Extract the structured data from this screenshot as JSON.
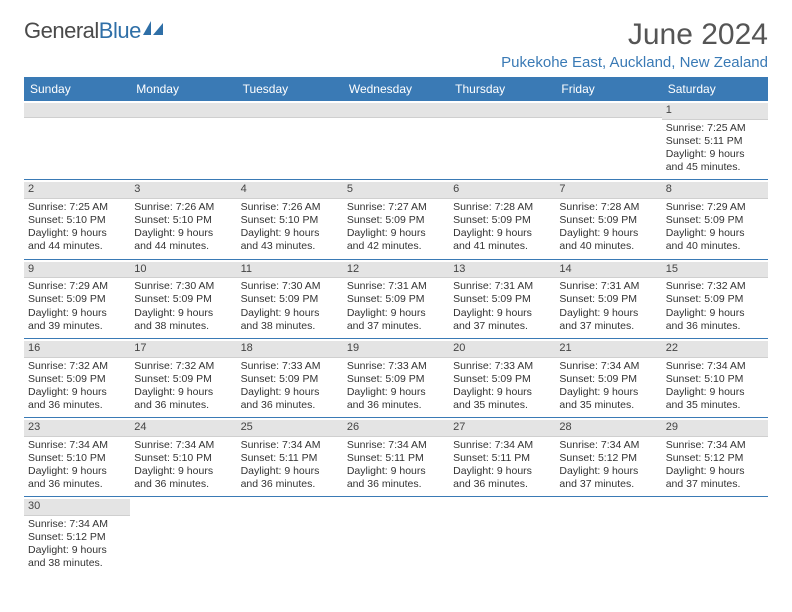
{
  "logo": {
    "text1": "General",
    "text2": "Blue"
  },
  "header": {
    "month_title": "June 2024",
    "location": "Pukekohe East, Auckland, New Zealand"
  },
  "colors": {
    "header_bg": "#3a7ab5",
    "header_text": "#ffffff",
    "daynum_bg": "#e4e4e4",
    "row_border": "#3a7ab5",
    "location_color": "#3a7ab5"
  },
  "day_names": [
    "Sunday",
    "Monday",
    "Tuesday",
    "Wednesday",
    "Thursday",
    "Friday",
    "Saturday"
  ],
  "weeks": [
    [
      null,
      null,
      null,
      null,
      null,
      null,
      {
        "num": "1",
        "sunrise": "Sunrise: 7:25 AM",
        "sunset": "Sunset: 5:11 PM",
        "day1": "Daylight: 9 hours",
        "day2": "and 45 minutes."
      }
    ],
    [
      {
        "num": "2",
        "sunrise": "Sunrise: 7:25 AM",
        "sunset": "Sunset: 5:10 PM",
        "day1": "Daylight: 9 hours",
        "day2": "and 44 minutes."
      },
      {
        "num": "3",
        "sunrise": "Sunrise: 7:26 AM",
        "sunset": "Sunset: 5:10 PM",
        "day1": "Daylight: 9 hours",
        "day2": "and 44 minutes."
      },
      {
        "num": "4",
        "sunrise": "Sunrise: 7:26 AM",
        "sunset": "Sunset: 5:10 PM",
        "day1": "Daylight: 9 hours",
        "day2": "and 43 minutes."
      },
      {
        "num": "5",
        "sunrise": "Sunrise: 7:27 AM",
        "sunset": "Sunset: 5:09 PM",
        "day1": "Daylight: 9 hours",
        "day2": "and 42 minutes."
      },
      {
        "num": "6",
        "sunrise": "Sunrise: 7:28 AM",
        "sunset": "Sunset: 5:09 PM",
        "day1": "Daylight: 9 hours",
        "day2": "and 41 minutes."
      },
      {
        "num": "7",
        "sunrise": "Sunrise: 7:28 AM",
        "sunset": "Sunset: 5:09 PM",
        "day1": "Daylight: 9 hours",
        "day2": "and 40 minutes."
      },
      {
        "num": "8",
        "sunrise": "Sunrise: 7:29 AM",
        "sunset": "Sunset: 5:09 PM",
        "day1": "Daylight: 9 hours",
        "day2": "and 40 minutes."
      }
    ],
    [
      {
        "num": "9",
        "sunrise": "Sunrise: 7:29 AM",
        "sunset": "Sunset: 5:09 PM",
        "day1": "Daylight: 9 hours",
        "day2": "and 39 minutes."
      },
      {
        "num": "10",
        "sunrise": "Sunrise: 7:30 AM",
        "sunset": "Sunset: 5:09 PM",
        "day1": "Daylight: 9 hours",
        "day2": "and 38 minutes."
      },
      {
        "num": "11",
        "sunrise": "Sunrise: 7:30 AM",
        "sunset": "Sunset: 5:09 PM",
        "day1": "Daylight: 9 hours",
        "day2": "and 38 minutes."
      },
      {
        "num": "12",
        "sunrise": "Sunrise: 7:31 AM",
        "sunset": "Sunset: 5:09 PM",
        "day1": "Daylight: 9 hours",
        "day2": "and 37 minutes."
      },
      {
        "num": "13",
        "sunrise": "Sunrise: 7:31 AM",
        "sunset": "Sunset: 5:09 PM",
        "day1": "Daylight: 9 hours",
        "day2": "and 37 minutes."
      },
      {
        "num": "14",
        "sunrise": "Sunrise: 7:31 AM",
        "sunset": "Sunset: 5:09 PM",
        "day1": "Daylight: 9 hours",
        "day2": "and 37 minutes."
      },
      {
        "num": "15",
        "sunrise": "Sunrise: 7:32 AM",
        "sunset": "Sunset: 5:09 PM",
        "day1": "Daylight: 9 hours",
        "day2": "and 36 minutes."
      }
    ],
    [
      {
        "num": "16",
        "sunrise": "Sunrise: 7:32 AM",
        "sunset": "Sunset: 5:09 PM",
        "day1": "Daylight: 9 hours",
        "day2": "and 36 minutes."
      },
      {
        "num": "17",
        "sunrise": "Sunrise: 7:32 AM",
        "sunset": "Sunset: 5:09 PM",
        "day1": "Daylight: 9 hours",
        "day2": "and 36 minutes."
      },
      {
        "num": "18",
        "sunrise": "Sunrise: 7:33 AM",
        "sunset": "Sunset: 5:09 PM",
        "day1": "Daylight: 9 hours",
        "day2": "and 36 minutes."
      },
      {
        "num": "19",
        "sunrise": "Sunrise: 7:33 AM",
        "sunset": "Sunset: 5:09 PM",
        "day1": "Daylight: 9 hours",
        "day2": "and 36 minutes."
      },
      {
        "num": "20",
        "sunrise": "Sunrise: 7:33 AM",
        "sunset": "Sunset: 5:09 PM",
        "day1": "Daylight: 9 hours",
        "day2": "and 35 minutes."
      },
      {
        "num": "21",
        "sunrise": "Sunrise: 7:34 AM",
        "sunset": "Sunset: 5:09 PM",
        "day1": "Daylight: 9 hours",
        "day2": "and 35 minutes."
      },
      {
        "num": "22",
        "sunrise": "Sunrise: 7:34 AM",
        "sunset": "Sunset: 5:10 PM",
        "day1": "Daylight: 9 hours",
        "day2": "and 35 minutes."
      }
    ],
    [
      {
        "num": "23",
        "sunrise": "Sunrise: 7:34 AM",
        "sunset": "Sunset: 5:10 PM",
        "day1": "Daylight: 9 hours",
        "day2": "and 36 minutes."
      },
      {
        "num": "24",
        "sunrise": "Sunrise: 7:34 AM",
        "sunset": "Sunset: 5:10 PM",
        "day1": "Daylight: 9 hours",
        "day2": "and 36 minutes."
      },
      {
        "num": "25",
        "sunrise": "Sunrise: 7:34 AM",
        "sunset": "Sunset: 5:11 PM",
        "day1": "Daylight: 9 hours",
        "day2": "and 36 minutes."
      },
      {
        "num": "26",
        "sunrise": "Sunrise: 7:34 AM",
        "sunset": "Sunset: 5:11 PM",
        "day1": "Daylight: 9 hours",
        "day2": "and 36 minutes."
      },
      {
        "num": "27",
        "sunrise": "Sunrise: 7:34 AM",
        "sunset": "Sunset: 5:11 PM",
        "day1": "Daylight: 9 hours",
        "day2": "and 36 minutes."
      },
      {
        "num": "28",
        "sunrise": "Sunrise: 7:34 AM",
        "sunset": "Sunset: 5:12 PM",
        "day1": "Daylight: 9 hours",
        "day2": "and 37 minutes."
      },
      {
        "num": "29",
        "sunrise": "Sunrise: 7:34 AM",
        "sunset": "Sunset: 5:12 PM",
        "day1": "Daylight: 9 hours",
        "day2": "and 37 minutes."
      }
    ],
    [
      {
        "num": "30",
        "sunrise": "Sunrise: 7:34 AM",
        "sunset": "Sunset: 5:12 PM",
        "day1": "Daylight: 9 hours",
        "day2": "and 38 minutes."
      },
      null,
      null,
      null,
      null,
      null,
      null
    ]
  ]
}
